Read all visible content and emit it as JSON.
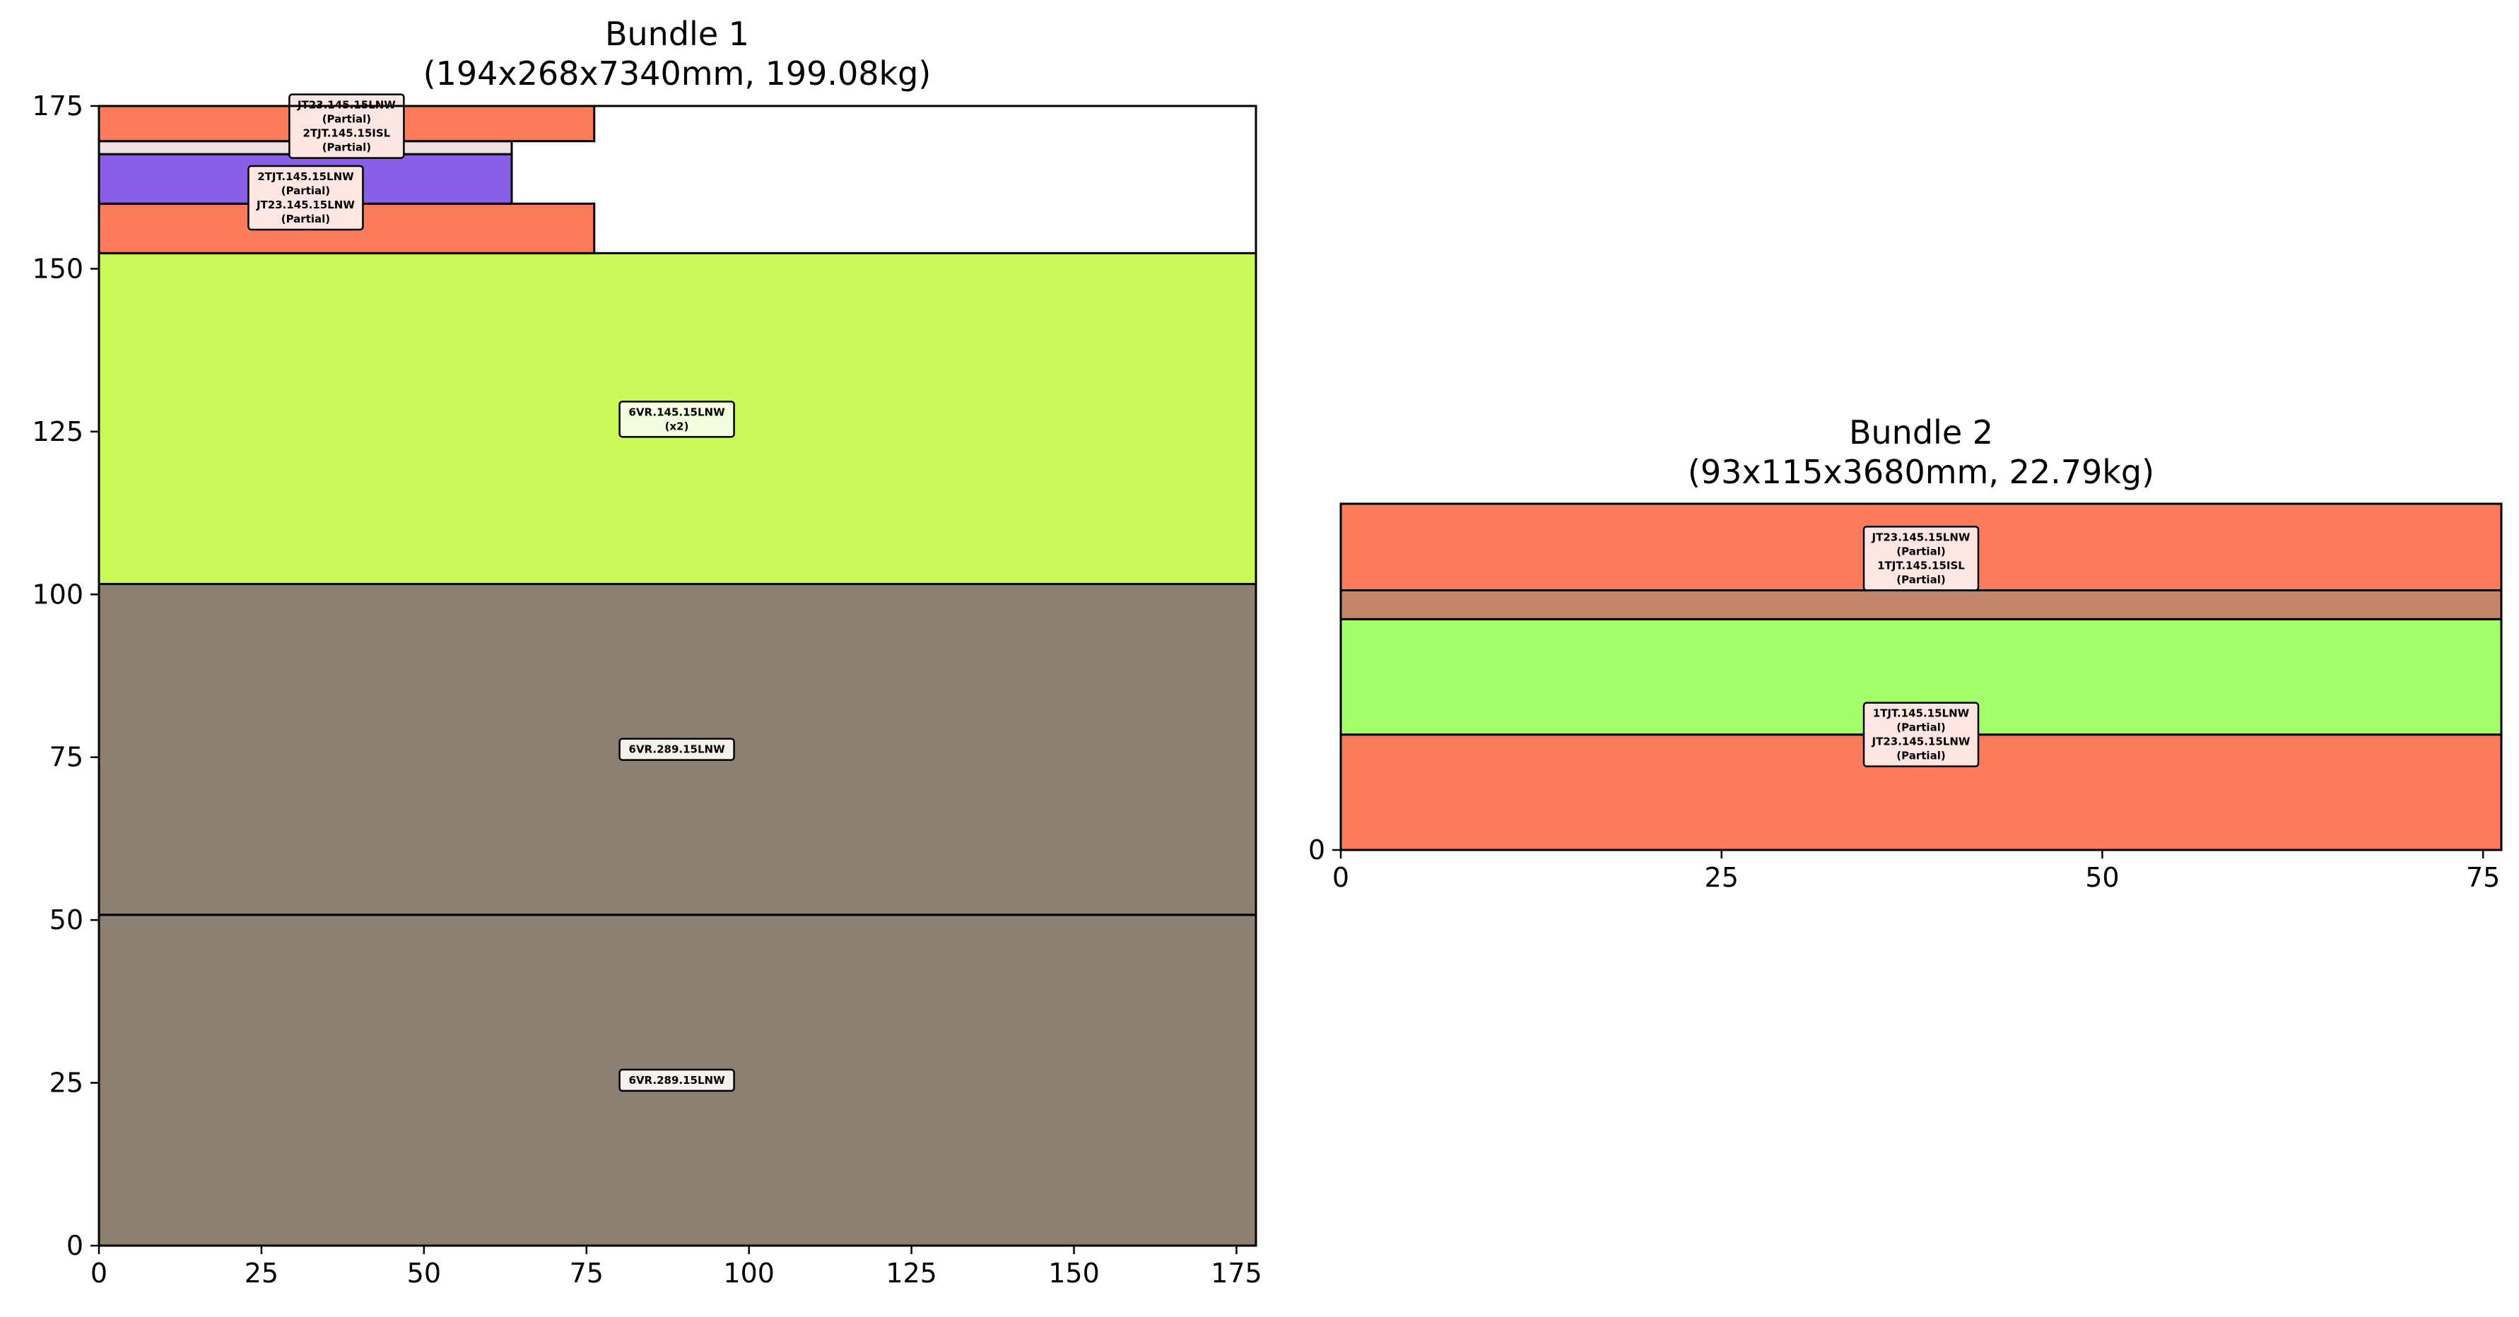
{
  "chart_data": [
    {
      "type": "bar",
      "subtype": "stacked-rectangles",
      "title": "Bundle 1",
      "subtitle": "(194x268x7340mm, 199.08kg)",
      "xlim": [
        0,
        178
      ],
      "ylim": [
        0,
        175
      ],
      "xticks": [
        0,
        25,
        50,
        75,
        100,
        125,
        150,
        175
      ],
      "yticks": [
        0,
        25,
        50,
        75,
        100,
        125,
        150,
        175
      ],
      "grid": false,
      "rectangles": [
        {
          "x0": 0,
          "x1": 178,
          "y0": 0,
          "y1": 50.8,
          "color": "#8b8072"
        },
        {
          "x0": 0,
          "x1": 178,
          "y0": 50.8,
          "y1": 101.6,
          "color": "#8b8072"
        },
        {
          "x0": 0,
          "x1": 178,
          "y0": 101.6,
          "y1": 152.4,
          "color": "#ccf95a"
        },
        {
          "x0": 0,
          "x1": 76.2,
          "y0": 152.4,
          "y1": 160,
          "color": "#fb7b5b"
        },
        {
          "x0": 0,
          "x1": 63.5,
          "y0": 160,
          "y1": 167.6,
          "color": "#8a5fe8"
        },
        {
          "x0": 0,
          "x1": 63.5,
          "y0": 167.6,
          "y1": 169.6,
          "color": "#efe2e2"
        },
        {
          "x0": 0,
          "x1": 76.2,
          "y0": 169.6,
          "y1": 175,
          "color": "#fb7b5b"
        }
      ],
      "annotations": [
        {
          "x": 88.9,
          "y": 25.4,
          "lines": [
            "6VR.289.15LNW"
          ],
          "bg": "#f4f1ec"
        },
        {
          "x": 88.9,
          "y": 76.2,
          "lines": [
            "6VR.289.15LNW"
          ],
          "bg": "#f4f1ec"
        },
        {
          "x": 88.9,
          "y": 126.9,
          "lines": [
            "6VR.145.15LNW",
            "(x2)"
          ],
          "bg": "#f4fde0"
        },
        {
          "x": 31.8,
          "y": 160.9,
          "lines": [
            "2TJT.145.15LNW",
            "(Partial)",
            "JT23.145.15LNW",
            "(Partial)"
          ],
          "bg": "#fde5e1"
        },
        {
          "x": 38.1,
          "y": 171.9,
          "lines": [
            "JT23.145.15LNW",
            "(Partial)",
            "2TJT.145.15ISL",
            "(Partial)"
          ],
          "bg": "#fde5e1"
        }
      ]
    },
    {
      "type": "bar",
      "subtype": "stacked-rectangles",
      "title": "Bundle 2",
      "subtitle": "(93x115x3680mm, 22.79kg)",
      "xlim": [
        0,
        76.2
      ],
      "ylim": [
        0,
        22.8
      ],
      "xticks": [
        0,
        25,
        50,
        75
      ],
      "yticks": [
        0
      ],
      "grid": false,
      "rectangles": [
        {
          "x0": 0,
          "x1": 76.2,
          "y0": 0,
          "y1": 7.6,
          "color": "#fb7b5b"
        },
        {
          "x0": 0,
          "x1": 76.2,
          "y0": 7.6,
          "y1": 15.2,
          "color": "#a4fe68"
        },
        {
          "x0": 0,
          "x1": 76.2,
          "y0": 15.2,
          "y1": 17.1,
          "color": "#c4866b"
        },
        {
          "x0": 0,
          "x1": 76.2,
          "y0": 17.1,
          "y1": 22.8,
          "color": "#fb7b5b"
        }
      ],
      "annotations": [
        {
          "x": 38.1,
          "y": 7.6,
          "lines": [
            "1TJT.145.15LNW",
            "(Partial)",
            "JT23.145.15LNW",
            "(Partial)"
          ],
          "bg": "#fde5e1"
        },
        {
          "x": 38.1,
          "y": 19.2,
          "lines": [
            "JT23.145.15LNW",
            "(Partial)",
            "1TJT.145.15ISL",
            "(Partial)"
          ],
          "bg": "#fde5e1"
        }
      ]
    }
  ]
}
